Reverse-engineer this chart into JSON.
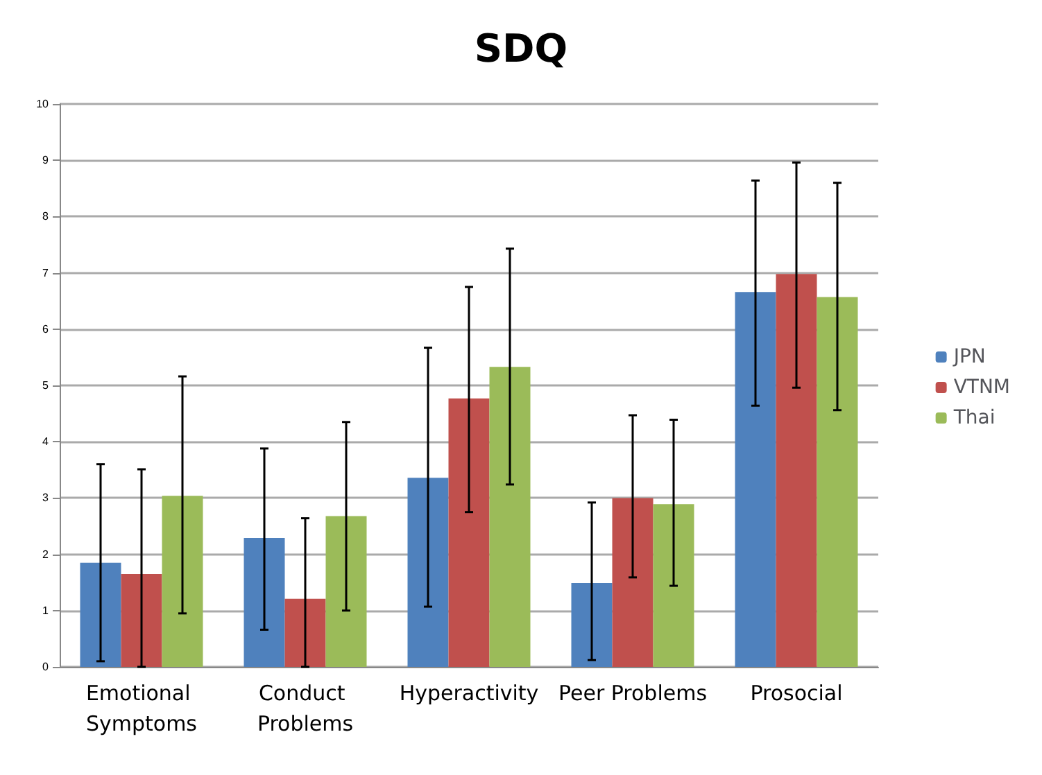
{
  "chart_data": {
    "type": "bar",
    "title": "SDQ",
    "categories": [
      "Emotional Symptoms",
      "Conduct Problems",
      "Hyperactivity",
      "Peer Problems",
      "Prosocial"
    ],
    "series": [
      {
        "name": "JPN",
        "color": "#4f81bd",
        "values": [
          1.85,
          2.29,
          3.36,
          1.49,
          6.66
        ],
        "errors": [
          [
            0.1,
            3.6
          ],
          [
            0.66,
            3.88
          ],
          [
            1.07,
            5.67
          ],
          [
            0.12,
            2.92
          ],
          [
            4.64,
            8.64
          ]
        ]
      },
      {
        "name": "VTNM",
        "color": "#c0504d",
        "values": [
          1.65,
          1.21,
          4.77,
          3.0,
          6.98
        ],
        "errors": [
          [
            0,
            3.51
          ],
          [
            0,
            2.64
          ],
          [
            2.75,
            6.75
          ],
          [
            1.59,
            4.47
          ],
          [
            4.96,
            8.96
          ]
        ]
      },
      {
        "name": "Thai",
        "color": "#9bbb59",
        "values": [
          3.04,
          2.68,
          5.33,
          2.89,
          6.57
        ],
        "errors": [
          [
            0.95,
            5.16
          ],
          [
            1.0,
            4.35
          ],
          [
            3.24,
            7.43
          ],
          [
            1.44,
            4.39
          ],
          [
            4.56,
            8.6
          ]
        ]
      }
    ],
    "ylim": [
      0,
      10
    ],
    "yticks": [
      0,
      1,
      2,
      3,
      4,
      5,
      6,
      7,
      8,
      9,
      10
    ],
    "grid": "y",
    "legend": "right"
  }
}
